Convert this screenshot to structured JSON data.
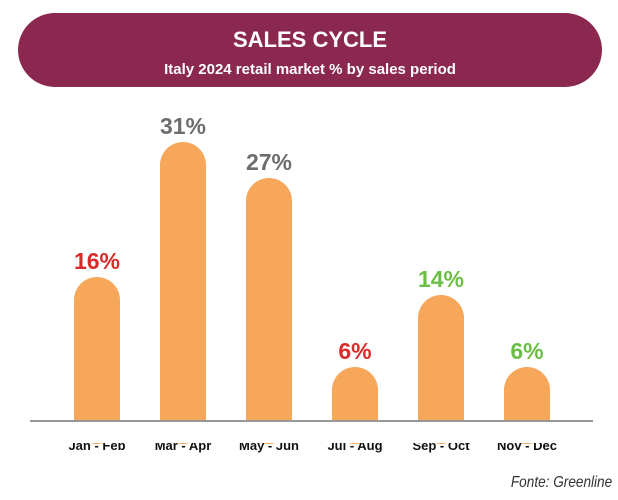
{
  "colors": {
    "header": "#8B2850",
    "bar": "#F6A75A",
    "axis": "#999999"
  },
  "chart_data": {
    "type": "bar",
    "title": "SALES CYCLE",
    "subtitle": "Italy 2024 retail market % by sales period",
    "categories": [
      "Jan - Feb",
      "Mar - Apr",
      "May - Jun",
      "Jul - Aug",
      "Sep - Oct",
      "Nov - Dec"
    ],
    "values": [
      16,
      31,
      27,
      6,
      14,
      6
    ],
    "value_labels": [
      "16%",
      "31%",
      "27%",
      "6%",
      "14%",
      "6%"
    ],
    "label_colors": [
      "#D92B2B",
      "#6D6D6D",
      "#6D6D6D",
      "#D92B2B",
      "#6BBE45",
      "#6BBE45"
    ],
    "xlabel": "",
    "ylabel": "",
    "ylim": [
      0,
      31
    ],
    "grid": false,
    "legend": "none"
  },
  "source": "Fonte: Greenline"
}
